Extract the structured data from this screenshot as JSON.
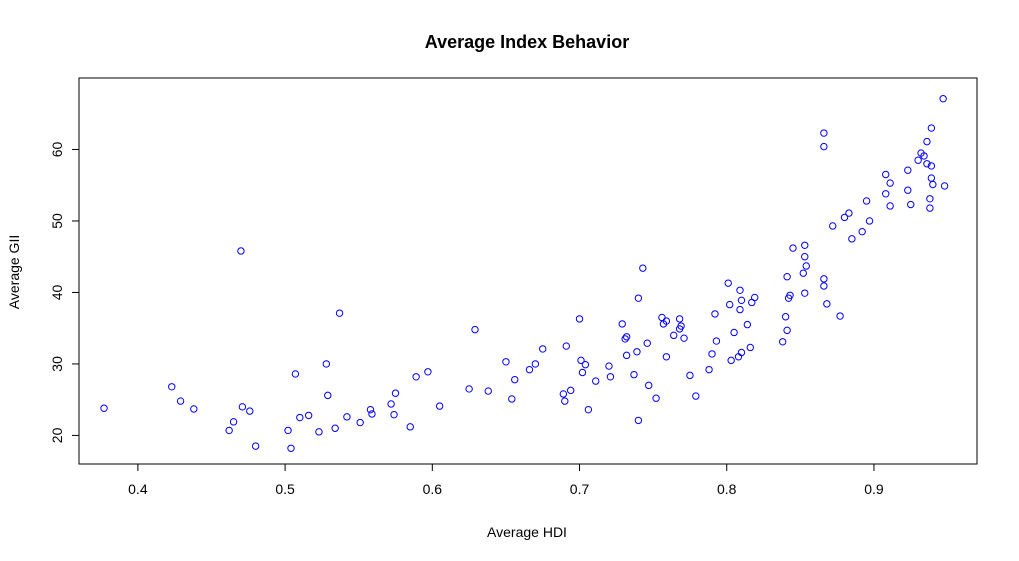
{
  "chart_data": {
    "type": "scatter",
    "title": "Average Index Behavior",
    "xlabel": "Average HDI",
    "ylabel": "Average GII",
    "xlim": [
      0.36,
      0.97
    ],
    "ylim": [
      16,
      70
    ],
    "xticks": [
      0.4,
      0.5,
      0.6,
      0.7,
      0.8,
      0.9
    ],
    "xtick_labels": [
      "0.4",
      "0.5",
      "0.6",
      "0.7",
      "0.8",
      "0.9"
    ],
    "yticks": [
      20,
      30,
      40,
      50,
      60
    ],
    "ytick_labels": [
      "20",
      "30",
      "40",
      "50",
      "60"
    ],
    "grid": false,
    "marker": "open-circle",
    "point_color": "#0000ff",
    "points": [
      [
        0.377,
        23.8
      ],
      [
        0.423,
        26.8
      ],
      [
        0.429,
        24.8
      ],
      [
        0.438,
        23.7
      ],
      [
        0.462,
        20.7
      ],
      [
        0.465,
        21.9
      ],
      [
        0.47,
        45.8
      ],
      [
        0.471,
        24.0
      ],
      [
        0.476,
        23.4
      ],
      [
        0.48,
        18.5
      ],
      [
        0.502,
        20.7
      ],
      [
        0.504,
        18.2
      ],
      [
        0.507,
        28.6
      ],
      [
        0.51,
        22.5
      ],
      [
        0.516,
        22.8
      ],
      [
        0.523,
        20.5
      ],
      [
        0.528,
        30.0
      ],
      [
        0.529,
        25.6
      ],
      [
        0.534,
        21.0
      ],
      [
        0.537,
        37.1
      ],
      [
        0.542,
        22.6
      ],
      [
        0.551,
        21.8
      ],
      [
        0.558,
        23.6
      ],
      [
        0.559,
        23.0
      ],
      [
        0.572,
        24.4
      ],
      [
        0.574,
        22.9
      ],
      [
        0.575,
        25.9
      ],
      [
        0.585,
        21.2
      ],
      [
        0.589,
        28.2
      ],
      [
        0.597,
        28.9
      ],
      [
        0.605,
        24.1
      ],
      [
        0.625,
        26.5
      ],
      [
        0.629,
        34.8
      ],
      [
        0.638,
        26.2
      ],
      [
        0.65,
        30.3
      ],
      [
        0.654,
        25.1
      ],
      [
        0.656,
        27.8
      ],
      [
        0.666,
        29.2
      ],
      [
        0.67,
        30.0
      ],
      [
        0.675,
        32.1
      ],
      [
        0.689,
        25.8
      ],
      [
        0.69,
        24.8
      ],
      [
        0.691,
        32.5
      ],
      [
        0.694,
        26.3
      ],
      [
        0.7,
        36.3
      ],
      [
        0.701,
        30.5
      ],
      [
        0.702,
        28.8
      ],
      [
        0.704,
        29.9
      ],
      [
        0.706,
        23.6
      ],
      [
        0.711,
        27.6
      ],
      [
        0.72,
        29.7
      ],
      [
        0.721,
        28.2
      ],
      [
        0.729,
        35.6
      ],
      [
        0.731,
        33.5
      ],
      [
        0.732,
        31.2
      ],
      [
        0.732,
        33.8
      ],
      [
        0.737,
        28.5
      ],
      [
        0.739,
        31.7
      ],
      [
        0.74,
        22.1
      ],
      [
        0.74,
        39.2
      ],
      [
        0.743,
        43.4
      ],
      [
        0.746,
        32.9
      ],
      [
        0.747,
        27.0
      ],
      [
        0.752,
        25.2
      ],
      [
        0.756,
        36.5
      ],
      [
        0.757,
        35.6
      ],
      [
        0.759,
        31.0
      ],
      [
        0.759,
        36.0
      ],
      [
        0.764,
        34.0
      ],
      [
        0.768,
        34.9
      ],
      [
        0.768,
        36.3
      ],
      [
        0.769,
        35.3
      ],
      [
        0.771,
        33.6
      ],
      [
        0.775,
        28.4
      ],
      [
        0.779,
        25.5
      ],
      [
        0.788,
        29.2
      ],
      [
        0.79,
        31.4
      ],
      [
        0.792,
        37.0
      ],
      [
        0.793,
        33.2
      ],
      [
        0.801,
        41.3
      ],
      [
        0.802,
        38.3
      ],
      [
        0.803,
        30.5
      ],
      [
        0.805,
        34.4
      ],
      [
        0.808,
        31.0
      ],
      [
        0.809,
        40.3
      ],
      [
        0.809,
        37.6
      ],
      [
        0.81,
        38.9
      ],
      [
        0.81,
        31.6
      ],
      [
        0.814,
        35.5
      ],
      [
        0.816,
        32.3
      ],
      [
        0.817,
        38.6
      ],
      [
        0.819,
        39.3
      ],
      [
        0.838,
        33.1
      ],
      [
        0.84,
        36.6
      ],
      [
        0.841,
        42.2
      ],
      [
        0.841,
        34.7
      ],
      [
        0.842,
        39.2
      ],
      [
        0.843,
        39.6
      ],
      [
        0.845,
        46.2
      ],
      [
        0.852,
        42.7
      ],
      [
        0.853,
        46.6
      ],
      [
        0.853,
        39.9
      ],
      [
        0.853,
        45.0
      ],
      [
        0.854,
        43.7
      ],
      [
        0.866,
        62.3
      ],
      [
        0.866,
        60.4
      ],
      [
        0.866,
        41.9
      ],
      [
        0.866,
        40.9
      ],
      [
        0.868,
        38.4
      ],
      [
        0.872,
        49.3
      ],
      [
        0.877,
        36.7
      ],
      [
        0.88,
        50.5
      ],
      [
        0.883,
        51.1
      ],
      [
        0.885,
        47.5
      ],
      [
        0.892,
        48.5
      ],
      [
        0.895,
        52.8
      ],
      [
        0.897,
        50.0
      ],
      [
        0.908,
        56.5
      ],
      [
        0.908,
        53.8
      ],
      [
        0.911,
        55.3
      ],
      [
        0.911,
        52.1
      ],
      [
        0.923,
        57.1
      ],
      [
        0.923,
        54.3
      ],
      [
        0.925,
        52.3
      ],
      [
        0.93,
        58.5
      ],
      [
        0.932,
        59.5
      ],
      [
        0.934,
        59.1
      ],
      [
        0.936,
        58.0
      ],
      [
        0.936,
        61.1
      ],
      [
        0.938,
        51.8
      ],
      [
        0.938,
        53.1
      ],
      [
        0.939,
        63.0
      ],
      [
        0.939,
        56.0
      ],
      [
        0.939,
        57.7
      ],
      [
        0.94,
        55.1
      ],
      [
        0.947,
        67.1
      ],
      [
        0.948,
        54.9
      ]
    ]
  }
}
